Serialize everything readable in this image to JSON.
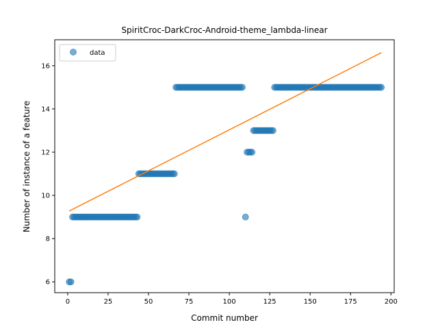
{
  "chart_data": {
    "type": "scatter",
    "title": "SpiritCroc-DarkCroc-Android-theme_lambda-linear",
    "xlabel": "Commit number",
    "ylabel": "Number of instance of a feature",
    "xlim": [
      -8,
      202
    ],
    "ylim": [
      5.5,
      17.2
    ],
    "x_ticks": [
      0,
      25,
      50,
      75,
      100,
      125,
      150,
      175,
      200
    ],
    "y_ticks": [
      6,
      8,
      10,
      12,
      14,
      16
    ],
    "grid": false,
    "legend": {
      "placement": "top-left",
      "entries": [
        "data"
      ]
    },
    "series": [
      {
        "name": "data",
        "kind": "scatter",
        "color": "#1f77b4",
        "segments": [
          {
            "x_start": 1,
            "x_end": 2,
            "y": 6
          },
          {
            "x_start": 3,
            "x_end": 43,
            "y": 9
          },
          {
            "x_start": 44,
            "x_end": 66,
            "y": 11
          },
          {
            "x_start": 67,
            "x_end": 108,
            "y": 15
          },
          {
            "x_start": 110,
            "x_end": 110,
            "y": 9
          },
          {
            "x_start": 111,
            "x_end": 114,
            "y": 12
          },
          {
            "x_start": 115,
            "x_end": 127,
            "y": 13
          },
          {
            "x_start": 128,
            "x_end": 194,
            "y": 15
          }
        ]
      },
      {
        "name": "",
        "kind": "line",
        "color": "#ff7f0e",
        "x": [
          1,
          194
        ],
        "y": [
          9.28,
          16.6
        ]
      }
    ]
  }
}
